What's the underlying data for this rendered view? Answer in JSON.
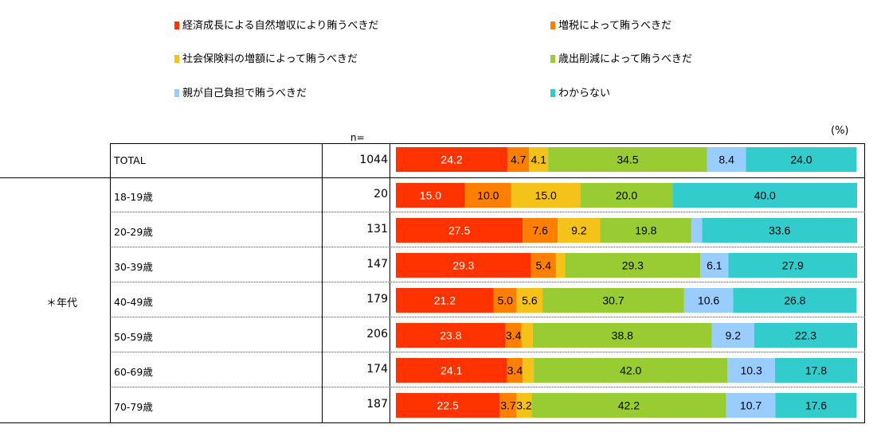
{
  "legend": [
    {
      "label": "経済成長による自然増収により賄うべきだ",
      "color": "#ff3300"
    },
    {
      "label": "増税によって賄うべきだ",
      "color": "#ff8000"
    },
    {
      "label": "社会保険料の増額によって賄うべきだ",
      "color": "#f5c21a"
    },
    {
      "label": "歳出削減によって賄うべきだ",
      "color": "#99cc33"
    },
    {
      "label": "親が自己負担で賄うべきだ",
      "color": "#99ccff"
    },
    {
      "label": "わからない",
      "color": "#33cccc"
    }
  ],
  "n_header": "n=",
  "unit": "(%)",
  "group_label": "＊年代",
  "chart_data": {
    "type": "bar",
    "orientation": "horizontal-stacked-100",
    "unit": "%",
    "categories": [
      "TOTAL",
      "18-19歳",
      "20-29歳",
      "30-39歳",
      "40-49歳",
      "50-59歳",
      "60-69歳",
      "70-79歳"
    ],
    "n": [
      "1044",
      "20",
      "131",
      "147",
      "179",
      "206",
      "174",
      "187"
    ],
    "series": [
      {
        "name": "経済成長による自然増収により賄うべきだ",
        "color": "#ff3300",
        "values": [
          24.2,
          15.0,
          27.5,
          29.3,
          21.2,
          23.8,
          24.1,
          22.5
        ],
        "labels": [
          "24.2",
          "15.0",
          "27.5",
          "29.3",
          "21.2",
          "23.8",
          "24.1",
          "22.5"
        ]
      },
      {
        "name": "増税によって賄うべきだ",
        "color": "#ff8000",
        "values": [
          4.7,
          10.0,
          7.6,
          5.4,
          5.0,
          3.4,
          3.4,
          3.7
        ],
        "labels": [
          "4.7",
          "10.0",
          "7.6",
          "5.4",
          "5.0",
          "3.4",
          "3.4",
          "3.7"
        ]
      },
      {
        "name": "社会保険料の増額によって賄うべきだ",
        "color": "#f5c21a",
        "values": [
          4.1,
          15.0,
          9.2,
          2.0,
          5.6,
          2.5,
          2.4,
          3.2
        ],
        "labels": [
          "4.1",
          "15.0",
          "9.2",
          "",
          "5.6",
          "",
          "",
          "3.2"
        ]
      },
      {
        "name": "歳出削減によって賄うべきだ",
        "color": "#99cc33",
        "values": [
          34.5,
          20.0,
          19.8,
          29.3,
          30.7,
          38.8,
          42.0,
          42.2
        ],
        "labels": [
          "34.5",
          "20.0",
          "19.8",
          "29.3",
          "30.7",
          "38.8",
          "42.0",
          "42.2"
        ]
      },
      {
        "name": "親が自己負担で賄うべきだ",
        "color": "#99ccff",
        "values": [
          8.4,
          0.0,
          2.3,
          6.1,
          10.6,
          9.2,
          10.3,
          10.7
        ],
        "labels": [
          "8.4",
          "",
          "",
          "6.1",
          "10.6",
          "9.2",
          "10.3",
          "10.7"
        ]
      },
      {
        "name": "わからない",
        "color": "#33cccc",
        "values": [
          24.0,
          40.0,
          33.6,
          27.9,
          26.8,
          22.3,
          17.8,
          17.6
        ],
        "labels": [
          "24.0",
          "40.0",
          "33.6",
          "27.9",
          "26.8",
          "22.3",
          "17.8",
          "17.6"
        ]
      }
    ],
    "xlim": [
      0,
      100
    ]
  }
}
